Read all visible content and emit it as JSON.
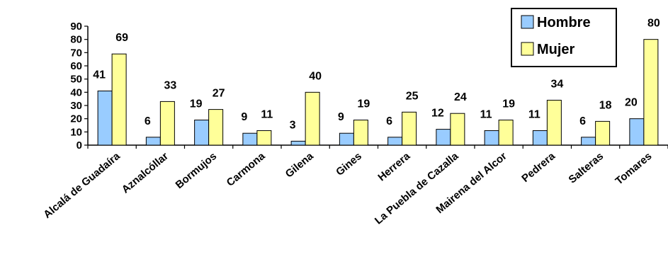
{
  "chart_data": {
    "type": "bar",
    "categories": [
      "Alcalá de Guadaíra",
      "Aznalcóllar",
      "Bormujos",
      "Carmona",
      "Gilena",
      "Gines",
      "Herrera",
      "La Puebla de Cazalla",
      "Mairena del Alcor",
      "Pedrera",
      "Salteras",
      "Tomares"
    ],
    "series": [
      {
        "name": "Hombre",
        "values": [
          41,
          6,
          19,
          9,
          3,
          9,
          6,
          12,
          11,
          11,
          6,
          20
        ],
        "color": "#99CCFF"
      },
      {
        "name": "Mujer",
        "values": [
          69,
          33,
          27,
          11,
          40,
          19,
          25,
          24,
          19,
          34,
          18,
          80
        ],
        "color": "#FFFF99"
      }
    ],
    "ylim": [
      0,
      90
    ],
    "yticks": [
      "0",
      "10",
      "20",
      "30",
      "40",
      "50",
      "60",
      "70",
      "80",
      "90"
    ],
    "legend": "top-right",
    "grid": false
  }
}
